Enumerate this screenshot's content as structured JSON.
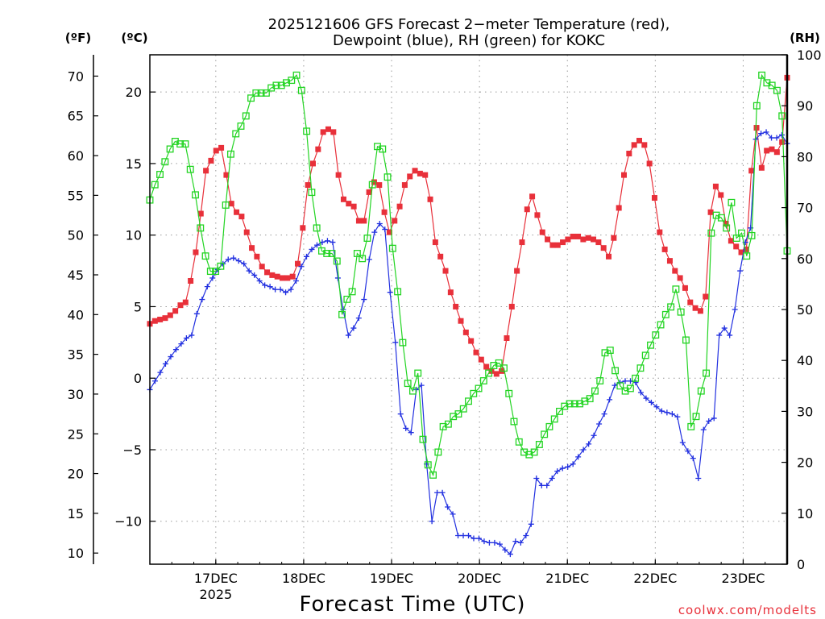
{
  "chart_data": {
    "type": "line",
    "title": "2025121606 GFS Forecast 2-meter Temperature (red), Dewpoint (blue), RH (green) for KOKC",
    "title_lines": [
      "2025121606 GFS Forecast 2−meter Temperature (red),",
      "Dewpoint (blue), RH (green) for KOKC"
    ],
    "xlabel": "Forecast Time (UTC)",
    "credit": "coolwx.com/modelts",
    "units": {
      "fahrenheit": "(ºF)",
      "celsius": "(ºC)",
      "rh": "(RH)"
    },
    "x_start_hour": 6,
    "x_range_hours": [
      6,
      180
    ],
    "x_ticks": [
      {
        "hour": 24,
        "label": "17DEC",
        "sublabel": "2025"
      },
      {
        "hour": 48,
        "label": "18DEC",
        "sublabel": ""
      },
      {
        "hour": 72,
        "label": "19DEC",
        "sublabel": ""
      },
      {
        "hour": 96,
        "label": "20DEC",
        "sublabel": ""
      },
      {
        "hour": 120,
        "label": "21DEC",
        "sublabel": ""
      },
      {
        "hour": 144,
        "label": "22DEC",
        "sublabel": ""
      },
      {
        "hour": 168,
        "label": "23DEC",
        "sublabel": ""
      }
    ],
    "celsius_axis": {
      "range": [
        -13,
        22.6
      ],
      "ticks": [
        20,
        15,
        10,
        5,
        0,
        -5,
        -10
      ],
      "tick_labels": [
        "20",
        "15",
        "10",
        "5",
        "0",
        "−5",
        "−10"
      ]
    },
    "fahrenheit_axis": {
      "ticks": [
        70,
        65,
        60,
        55,
        50,
        45,
        40,
        35,
        30,
        25,
        20,
        15,
        10
      ]
    },
    "rh_axis": {
      "range": [
        0,
        100
      ],
      "ticks": [
        100,
        90,
        80,
        70,
        60,
        50,
        40,
        30,
        20,
        10,
        0
      ]
    },
    "grid": true,
    "series": [
      {
        "name": "Temperature",
        "color": "#e8303a",
        "marker": "filled-square",
        "axis": "celsius",
        "values": [
          3.8,
          4.0,
          4.1,
          4.2,
          4.4,
          4.7,
          5.1,
          5.3,
          6.8,
          8.8,
          11.5,
          14.5,
          15.2,
          15.9,
          16.1,
          14.2,
          12.2,
          11.6,
          11.3,
          10.2,
          9.1,
          8.5,
          7.8,
          7.4,
          7.2,
          7.1,
          7.0,
          7.0,
          7.1,
          8.0,
          10.5,
          13.5,
          15.0,
          16.0,
          17.2,
          17.4,
          17.2,
          14.2,
          12.5,
          12.2,
          12.0,
          11.0,
          11.0,
          13.0,
          13.7,
          13.5,
          11.6,
          10.2,
          11.0,
          12.0,
          13.5,
          14.1,
          14.5,
          14.3,
          14.2,
          12.5,
          9.5,
          8.5,
          7.5,
          6.0,
          5.0,
          4.0,
          3.2,
          2.6,
          1.8,
          1.3,
          0.8,
          0.5,
          0.3,
          0.5,
          2.8,
          5.0,
          7.5,
          9.5,
          11.8,
          12.7,
          11.4,
          10.2,
          9.7,
          9.3,
          9.3,
          9.5,
          9.7,
          9.9,
          9.9,
          9.7,
          9.8,
          9.7,
          9.5,
          9.1,
          8.5,
          9.8,
          11.9,
          14.2,
          15.7,
          16.3,
          16.6,
          16.3,
          15.0,
          12.6,
          10.2,
          9.0,
          8.2,
          7.5,
          7.0,
          6.3,
          5.3,
          4.9,
          4.7,
          5.7,
          11.6,
          13.4,
          12.8,
          10.8,
          9.6,
          9.2,
          8.8,
          9.0,
          14.5,
          17.5,
          14.7,
          15.9,
          16.0,
          15.8,
          16.5,
          21.0
        ]
      },
      {
        "name": "Dewpoint",
        "color": "#2230e0",
        "marker": "plus",
        "axis": "celsius",
        "values": [
          -0.8,
          -0.2,
          0.4,
          1.0,
          1.5,
          2.0,
          2.4,
          2.8,
          3.0,
          4.5,
          5.5,
          6.4,
          7.0,
          7.6,
          8.0,
          8.3,
          8.4,
          8.2,
          8.0,
          7.5,
          7.2,
          6.8,
          6.5,
          6.4,
          6.2,
          6.2,
          6.0,
          6.2,
          6.8,
          7.8,
          8.5,
          9.0,
          9.3,
          9.5,
          9.6,
          9.5,
          7.0,
          4.8,
          3.0,
          3.5,
          4.2,
          5.5,
          8.3,
          10.2,
          10.8,
          10.4,
          6.0,
          2.5,
          -2.5,
          -3.5,
          -3.8,
          -0.8,
          -0.5,
          -6.0,
          -10.0,
          -8.0,
          -8.0,
          -9.0,
          -9.5,
          -11.0,
          -11.0,
          -11.0,
          -11.2,
          -11.2,
          -11.4,
          -11.5,
          -11.5,
          -11.6,
          -12.0,
          -12.3,
          -11.4,
          -11.5,
          -11.0,
          -10.2,
          -7.0,
          -7.5,
          -7.5,
          -7.0,
          -6.5,
          -6.3,
          -6.2,
          -6.0,
          -5.5,
          -5.0,
          -4.6,
          -4.0,
          -3.2,
          -2.5,
          -1.5,
          -0.5,
          -0.3,
          -0.2,
          -0.2,
          -0.3,
          -1.0,
          -1.4,
          -1.7,
          -2.0,
          -2.3,
          -2.4,
          -2.5,
          -2.7,
          -4.5,
          -5.1,
          -5.6,
          -7.0,
          -3.6,
          -3.0,
          -2.8,
          3.0,
          3.5,
          3.0,
          4.8,
          7.5,
          9.5,
          10.5,
          16.7,
          17.1,
          17.2,
          16.8,
          16.8,
          17.0,
          16.4
        ]
      },
      {
        "name": "RH",
        "color": "#22d422",
        "marker": "open-square",
        "axis": "rh",
        "values": [
          71.5,
          74.5,
          76.5,
          79,
          81.5,
          83,
          82.5,
          82.5,
          77.5,
          72.5,
          66,
          60.5,
          57.5,
          57.5,
          58.5,
          70.5,
          80.5,
          84.5,
          86,
          88,
          91.5,
          92.5,
          92.5,
          92.5,
          93.5,
          94,
          94,
          94.5,
          95,
          96,
          93,
          85,
          73,
          66,
          61.5,
          61,
          61,
          59.5,
          49,
          52,
          53.5,
          61,
          60,
          64,
          74.5,
          82,
          81.5,
          76,
          62,
          53.5,
          43.5,
          35.5,
          34,
          37.5,
          24.5,
          19.5,
          17.5,
          22,
          27,
          27.5,
          29,
          29.5,
          30.5,
          32,
          33.5,
          34.5,
          36,
          37.5,
          39,
          39.5,
          38.5,
          33.5,
          28,
          24,
          22,
          21.5,
          22,
          23.5,
          25.5,
          27,
          28.5,
          30,
          31,
          31.5,
          31.5,
          31.5,
          32,
          32.5,
          34,
          36,
          41.5,
          42,
          38,
          35,
          34,
          34.5,
          36.5,
          38.5,
          41,
          43,
          45,
          47,
          49,
          50.5,
          54,
          49.5,
          44,
          27,
          29,
          34,
          37.5,
          65,
          68.5,
          68,
          66,
          71,
          64,
          65,
          60.5,
          64.5,
          90,
          96,
          94.5,
          94,
          93,
          88,
          61.5
        ]
      }
    ]
  }
}
